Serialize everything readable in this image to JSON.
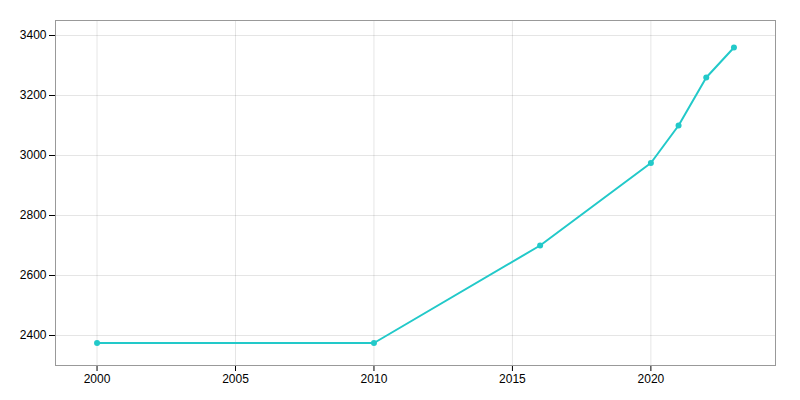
{
  "chart_data": {
    "type": "line",
    "x": [
      2000,
      2010,
      2016,
      2020,
      2021,
      2022,
      2023
    ],
    "values": [
      2375,
      2375,
      2700,
      2975,
      3100,
      3260,
      3360
    ],
    "color": "#22C9C9",
    "marker": "circle",
    "xlim": [
      1998.5,
      2024.5
    ],
    "xticks": [
      2000,
      2005,
      2010,
      2015,
      2020
    ],
    "ylim": [
      2300,
      3450
    ],
    "yticks": [
      2400,
      2600,
      2800,
      3000,
      3200,
      3400
    ],
    "grid": true
  }
}
